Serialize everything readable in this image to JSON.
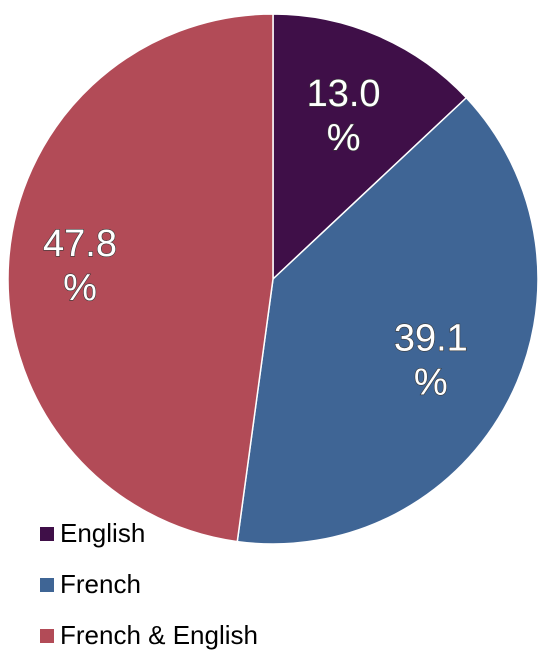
{
  "chart_data": {
    "type": "pie",
    "categories": [
      "English",
      "French",
      "French & English"
    ],
    "values": [
      13.0,
      39.1,
      47.8
    ],
    "data_labels": [
      [
        "13.0",
        "%"
      ],
      [
        "39.1",
        "%"
      ],
      [
        "47.8",
        "%"
      ]
    ],
    "colors": [
      "#3f0f48",
      "#3f6595",
      "#b24b57"
    ],
    "title": "",
    "legend": {
      "position": "bottom-left",
      "entries": [
        "English",
        "French",
        "French & English"
      ]
    },
    "start_angle": "12 o'clock",
    "direction": "clockwise"
  }
}
